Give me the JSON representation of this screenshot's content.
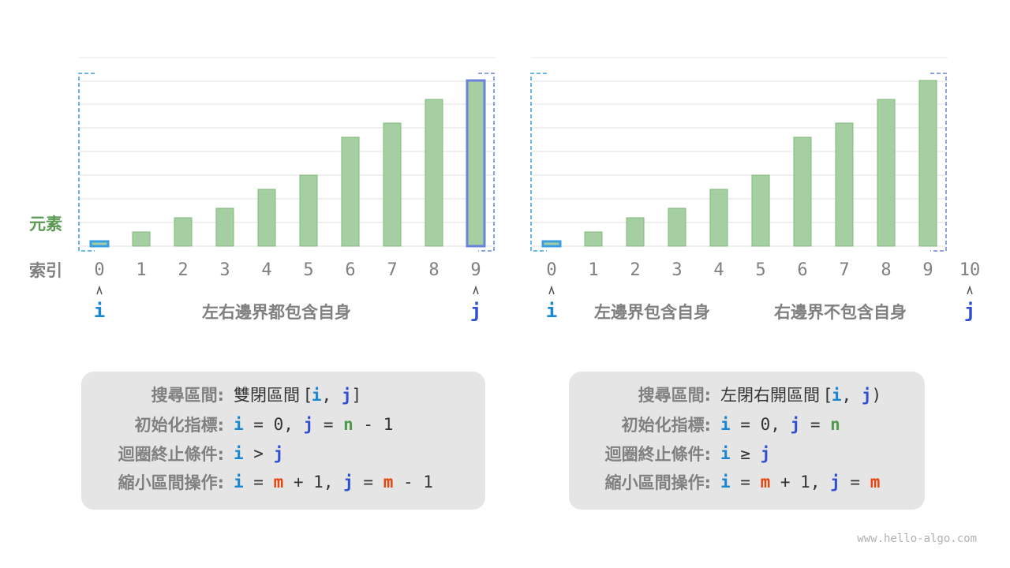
{
  "colors": {
    "bar_fill": "#a5cea2",
    "bar_stroke": "#7fb97b",
    "highlight_j": "#6b83d8",
    "highlight_i": "#3a9fe0",
    "pointer_i": "#1a86d1",
    "pointer_j": "#2f4fd0",
    "var_m": "#e5450f",
    "var_n": "#4f9a4a",
    "label_gray": "#808080",
    "element_label": "#5a9a52"
  },
  "axis_labels": {
    "elements": "元素",
    "index": "索引"
  },
  "elements": [
    0.2,
    0.6,
    1.2,
    1.6,
    2.4,
    3.0,
    4.6,
    5.2,
    6.2,
    7.0
  ],
  "panels": [
    {
      "indices": [
        "0",
        "1",
        "2",
        "3",
        "4",
        "5",
        "6",
        "7",
        "8",
        "9"
      ],
      "pointer_i": {
        "label": "i",
        "index": 0
      },
      "pointer_j": {
        "label": "j",
        "index": 9
      },
      "captions": [
        "左右邊界都包含自身"
      ],
      "box": {
        "rows": [
          {
            "label": "搜尋區間:",
            "parts": [
              [
                "t",
                "雙閉區間 ["
              ],
              [
                "i",
                "i"
              ],
              [
                "t",
                ", "
              ],
              [
                "j",
                "j"
              ],
              [
                "t",
                "]"
              ]
            ]
          },
          {
            "label": "初始化指標:",
            "parts": [
              [
                "i",
                "i"
              ],
              [
                "t",
                " = 0, "
              ],
              [
                "j",
                "j"
              ],
              [
                "t",
                " = "
              ],
              [
                "n",
                "n"
              ],
              [
                "t",
                " - 1"
              ]
            ]
          },
          {
            "label": "迴圈終止條件:",
            "parts": [
              [
                "i",
                "i"
              ],
              [
                "t",
                " > "
              ],
              [
                "j",
                "j"
              ]
            ]
          },
          {
            "label": "縮小區間操作:",
            "parts": [
              [
                "i",
                "i"
              ],
              [
                "t",
                " = "
              ],
              [
                "m",
                "m"
              ],
              [
                "t",
                " + 1, "
              ],
              [
                "j",
                "j"
              ],
              [
                "t",
                " = "
              ],
              [
                "m",
                "m"
              ],
              [
                "t",
                " - 1"
              ]
            ]
          }
        ]
      }
    },
    {
      "indices": [
        "0",
        "1",
        "2",
        "3",
        "4",
        "5",
        "6",
        "7",
        "8",
        "9",
        "10"
      ],
      "pointer_i": {
        "label": "i",
        "index": 0
      },
      "pointer_j": {
        "label": "j",
        "index": 10
      },
      "captions": [
        "左邊界包含自身",
        "右邊界不包含自身"
      ],
      "box": {
        "rows": [
          {
            "label": "搜尋區間:",
            "parts": [
              [
                "t",
                "左閉右開區間 ["
              ],
              [
                "i",
                "i"
              ],
              [
                "t",
                ", "
              ],
              [
                "j",
                "j"
              ],
              [
                "t",
                ")"
              ]
            ]
          },
          {
            "label": "初始化指標:",
            "parts": [
              [
                "i",
                "i"
              ],
              [
                "t",
                " = 0, "
              ],
              [
                "j",
                "j"
              ],
              [
                "t",
                " = "
              ],
              [
                "n",
                "n"
              ]
            ]
          },
          {
            "label": "迴圈終止條件:",
            "parts": [
              [
                "i",
                "i"
              ],
              [
                "t",
                " ≥ "
              ],
              [
                "j",
                "j"
              ]
            ]
          },
          {
            "label": "縮小區間操作:",
            "parts": [
              [
                "i",
                "i"
              ],
              [
                "t",
                " = "
              ],
              [
                "m",
                "m"
              ],
              [
                "t",
                " + 1, "
              ],
              [
                "j",
                "j"
              ],
              [
                "t",
                " = "
              ],
              [
                "m",
                "m"
              ]
            ]
          }
        ]
      }
    }
  ],
  "footer": "www.hello-algo.com"
}
